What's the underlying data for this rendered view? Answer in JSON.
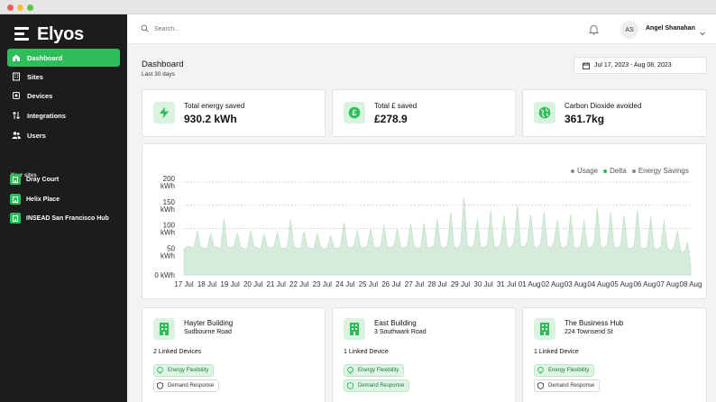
{
  "window": {
    "traffic_lights": [
      "#ee5d55",
      "#f5be3a",
      "#5cc83f"
    ]
  },
  "brand": {
    "name": "Elyos",
    "accent": "#2ebd59"
  },
  "sidebar": {
    "nav": [
      {
        "label": "Dashboard",
        "icon": "home-icon",
        "active": true
      },
      {
        "label": "Sites",
        "icon": "building-icon",
        "active": false
      },
      {
        "label": "Devices",
        "icon": "chip-icon",
        "active": false
      },
      {
        "label": "Integrations",
        "icon": "arrows-icon",
        "active": false
      },
      {
        "label": "Users",
        "icon": "users-icon",
        "active": false
      }
    ],
    "sites_heading": "Your sites",
    "sites": [
      {
        "label": "Dray Court"
      },
      {
        "label": "Helix Place"
      },
      {
        "label": "INSEAD San Francisco Hub"
      }
    ]
  },
  "topbar": {
    "search_placeholder": "Search...",
    "user_initials": "AS",
    "user_name": "Angel Shanahan"
  },
  "header": {
    "title": "Dashboard",
    "subtitle": "Last 30 days",
    "date_range": "Jul 17, 2023 - Aug 08, 2023"
  },
  "stats": [
    {
      "label": "Total energy saved",
      "value": "930.2 kWh",
      "icon": "bolt-icon"
    },
    {
      "label": "Total £ saved",
      "value": "£278.9",
      "icon": "pound-icon"
    },
    {
      "label": "Carbon Dioxide avoided",
      "value": "361.7kg",
      "icon": "globe-icon"
    }
  ],
  "chart_data": {
    "type": "area",
    "legend": [
      "Usage",
      "Delta",
      "Energy Savings"
    ],
    "legend_colors": [
      "#888888",
      "#2ebd59",
      "#888888"
    ],
    "y_ticks": [
      "200\nkWh",
      "150\nkWh",
      "100\nkWh",
      "50\nkWh",
      "0 kWh"
    ],
    "ylim": [
      0,
      200
    ],
    "x_labels": [
      "17 Jul",
      "18 Jul",
      "19 Jul",
      "20 Jul",
      "21 Jul",
      "22 Jul",
      "23 Jul",
      "24 Jul",
      "25 Jul",
      "26 Jul",
      "27 Jul",
      "28 Jul",
      "29 Jul",
      "30 Jul",
      "31 Jul",
      "01 Aug",
      "02 Aug",
      "03 Aug",
      "04 Aug",
      "05 Aug",
      "06 Aug",
      "07 Aug",
      "08 Aug"
    ],
    "series": [
      {
        "values": [
          55,
          62,
          60,
          58,
          95,
          60,
          58,
          57,
          90,
          62,
          60,
          56,
          120,
          60,
          58,
          62,
          90,
          60,
          57,
          56,
          95,
          62,
          58,
          57,
          88,
          60,
          58,
          61,
          92,
          58,
          57,
          60,
          118,
          62,
          57,
          58,
          94,
          60,
          57,
          58,
          90,
          60,
          56,
          58,
          85,
          60,
          56,
          62,
          112,
          60,
          58,
          63,
          96,
          60,
          58,
          62,
          100,
          60,
          58,
          62,
          108,
          60,
          58,
          64,
          100,
          60,
          57,
          63,
          110,
          62,
          57,
          60,
          112,
          60,
          58,
          64,
          120,
          60,
          58,
          64,
          135,
          62,
          57,
          68,
          165,
          64,
          58,
          65,
          120,
          60,
          58,
          66,
          140,
          62,
          58,
          68,
          128,
          60,
          58,
          70,
          150,
          62,
          60,
          70,
          130,
          62,
          58,
          66,
          135,
          62,
          58,
          70,
          118,
          60,
          58,
          65,
          130,
          60,
          57,
          64,
          118,
          60,
          58,
          68,
          145,
          62,
          58,
          66,
          135,
          60,
          58,
          64,
          128,
          60,
          56,
          62,
          140,
          60,
          56,
          62,
          125,
          58,
          55,
          60,
          118,
          58,
          52,
          60,
          95,
          52,
          45,
          70,
          20
        ]
      }
    ]
  },
  "site_cards": [
    {
      "name": "Hayter Building",
      "address": "Sudbourne Road",
      "linked": "2 Linked Devices",
      "tags": [
        {
          "label": "Energy Flexibility",
          "style": "green"
        },
        {
          "label": "Demand Response",
          "style": "grey"
        }
      ]
    },
    {
      "name": "East Building",
      "address": "3 Southwark Road",
      "linked": "1 Linked Device",
      "tags": [
        {
          "label": "Energy Flexibility",
          "style": "green"
        },
        {
          "label": "Demand Response",
          "style": "green"
        }
      ]
    },
    {
      "name": "The Business Hub",
      "address": "224 Townsend St",
      "linked": "1 Linked Device",
      "tags": [
        {
          "label": "Energy Flexibility",
          "style": "green"
        },
        {
          "label": "Demand Response",
          "style": "grey"
        }
      ]
    }
  ]
}
